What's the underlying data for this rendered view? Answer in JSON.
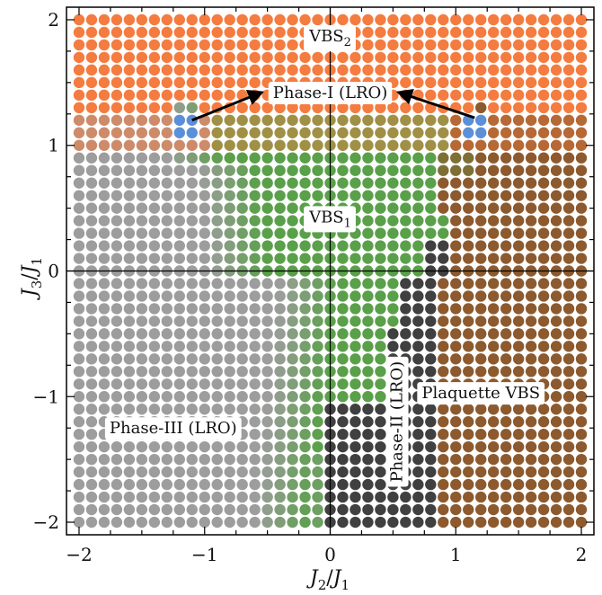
{
  "chart_data": {
    "type": "scatter",
    "title": "",
    "xlabel": "J2/J1",
    "ylabel": "J3/J1",
    "xlim": [
      -2.1,
      2.1
    ],
    "ylim": [
      -2.1,
      2.1
    ],
    "x_ticks": [
      "−2",
      "−1",
      "0",
      "1",
      "2"
    ],
    "y_ticks": [
      "−2",
      "−1",
      "0",
      "1",
      "2"
    ],
    "grid_spacing": 0.1,
    "grid_range": [
      -2.0,
      2.0
    ],
    "zero_lines": true,
    "colors": {
      "vbs2": "#f47c40",
      "phase_i": "#5b8fd8",
      "vbs1": "#5aa04a",
      "phase_ii": "#404040",
      "plaquette": "#8c5a2e",
      "phase_iii": "#9d9d9d",
      "arrow": "#000000"
    },
    "regions": [
      {
        "id": "vbs2",
        "label_main": "VBS",
        "label_sub": "2"
      },
      {
        "id": "phase_i",
        "label_main": "Phase-I (LRO)",
        "label_sub": ""
      },
      {
        "id": "vbs1",
        "label_main": "VBS",
        "label_sub": "1"
      },
      {
        "id": "phase_ii",
        "label_main": "Phase-II (LRO)",
        "label_sub": ""
      },
      {
        "id": "plaquette",
        "label_main": "Plaquette VBS",
        "label_sub": ""
      },
      {
        "id": "phase_iii",
        "label_main": "Phase-III (LRO)",
        "label_sub": ""
      }
    ],
    "label_anchors": {
      "vbs2": [
        0.0,
        1.87
      ],
      "phase_i": [
        0.0,
        1.42
      ],
      "vbs1": [
        0.0,
        0.43
      ],
      "phase_ii": [
        0.53,
        -1.2
      ],
      "plaquette": [
        1.2,
        -0.97
      ],
      "phase_iii": [
        -1.25,
        -1.25
      ]
    },
    "arrows": [
      {
        "from": [
          -1.1,
          1.2
        ],
        "to": [
          -0.55,
          1.42
        ]
      },
      {
        "from": [
          1.15,
          1.22
        ],
        "to": [
          0.55,
          1.42
        ]
      }
    ]
  }
}
